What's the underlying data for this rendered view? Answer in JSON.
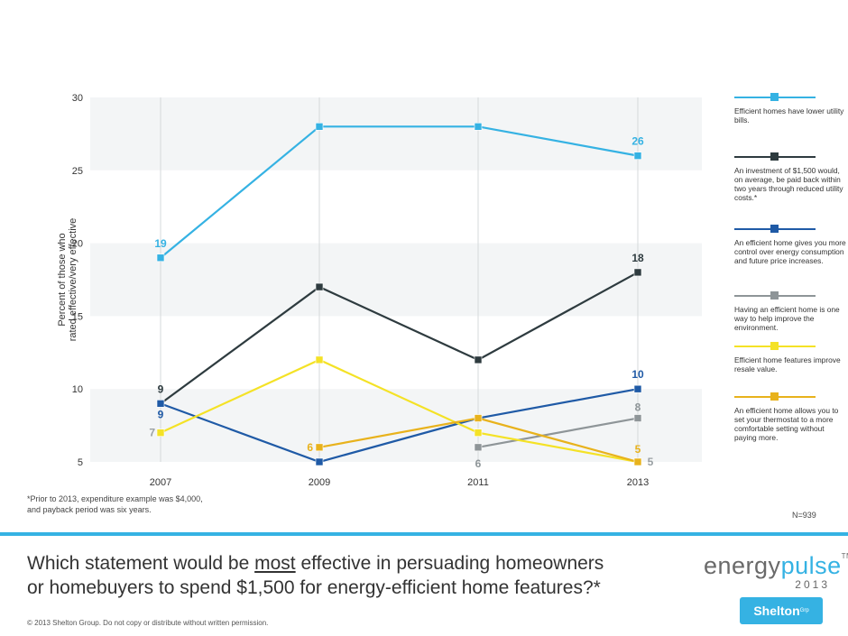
{
  "chart_data": {
    "type": "line",
    "title": "",
    "ylabel_lines": [
      "Percent of those who",
      "rated effective/very effective"
    ],
    "xlabel": "",
    "x": [
      "2007",
      "2009",
      "2011",
      "2013"
    ],
    "ylim": [
      5,
      30
    ],
    "yticks": [
      5,
      10,
      15,
      20,
      25,
      30
    ],
    "series": [
      {
        "name": "Efficient homes have lower utility bills.",
        "color": "#35b2e3",
        "values": [
          19,
          28,
          28,
          26
        ]
      },
      {
        "name": "An investment of $1,500 would, on average, be paid back within two years through reduced utility costs.*",
        "color": "#2e3b3f",
        "values": [
          9,
          17,
          12,
          18
        ]
      },
      {
        "name": "An efficient home gives you more control over energy consumption and future price increases.",
        "color": "#1f5aa6",
        "values": [
          9,
          5,
          8,
          10
        ]
      },
      {
        "name": "Having an efficient home is one way to help improve the environment.",
        "color": "#8e9598",
        "values": [
          null,
          null,
          6,
          8
        ]
      },
      {
        "name": "Efficient home features improve resale value.",
        "color": "#f4e226",
        "values": [
          7,
          12,
          7,
          5
        ]
      },
      {
        "name": "An efficient home allows you to set your thermostat to a more comfortable setting without paying more.",
        "color": "#e8b21c",
        "values": [
          null,
          6,
          8,
          5
        ]
      }
    ],
    "data_labels": [
      {
        "series": 0,
        "x": "2007",
        "text": "19"
      },
      {
        "series": 0,
        "x": "2013",
        "text": "26"
      },
      {
        "series": 1,
        "x": "2007",
        "text": "9"
      },
      {
        "series": 1,
        "x": "2013",
        "text": "18"
      },
      {
        "series": 2,
        "x": "2007",
        "text": "9"
      },
      {
        "series": 2,
        "x": "2013",
        "text": "10"
      },
      {
        "series": 3,
        "x": "2011",
        "text": "6"
      },
      {
        "series": 3,
        "x": "2013",
        "text": "8"
      },
      {
        "series": 4,
        "x": "2007",
        "text": "7"
      },
      {
        "series": 4,
        "x": "2013",
        "text": "5"
      },
      {
        "series": 5,
        "x": "2009",
        "text": "6"
      },
      {
        "series": 5,
        "x": "2013",
        "text": "5"
      }
    ],
    "grid": "alternating horizontal bands and vertical lines",
    "legend": "right"
  },
  "legend_items": [
    "Efficient homes have lower utility bills.",
    "An investment of $1,500 would, on average, be paid back within two years through reduced utility costs.*",
    "An efficient home gives you more control over energy consumption and future price increases.",
    "Having an efficient home is one way to help improve the environment.",
    "Efficient home features improve resale value.",
    "An efficient home allows you to set your thermostat to a more comfortable setting without paying more."
  ],
  "footnote_lines": [
    "*Prior to 2013, expenditure example was $4,000,",
    "and payback period was six years."
  ],
  "sample_size": "N=939",
  "question": {
    "part1": "Which statement would be ",
    "emphasis": "most",
    "part2": " effective in persuading homeowners",
    "line2": "or homebuyers to spend $1,500 for energy-efficient home features?*"
  },
  "copyright": "© 2013 Shelton Group. Do not copy or distribute without written permission.",
  "brand": {
    "name_part1": "energy",
    "name_part2": "pulse",
    "tm": "TM",
    "year": "2013",
    "company": "Shelton",
    "company_sup": "Grp"
  }
}
